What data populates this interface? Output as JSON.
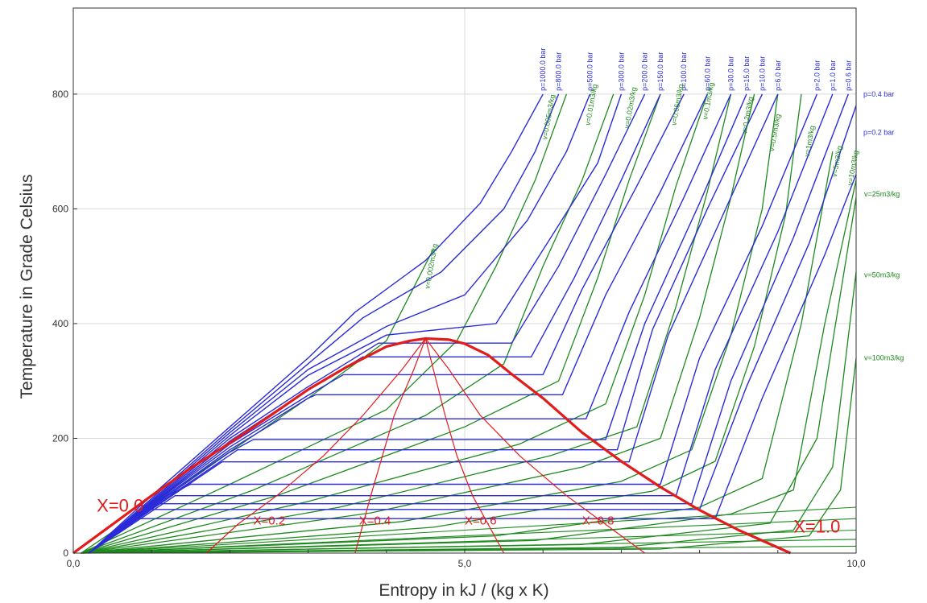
{
  "chart_data": {
    "type": "line",
    "title": "",
    "xlabel": "Entropy in kJ / (kg x K)",
    "ylabel": "Temperature in Grade Celsius",
    "xlim": [
      0,
      10
    ],
    "ylim": [
      0,
      950
    ],
    "x_ticks": [
      {
        "value": 0,
        "label": "0,0"
      },
      {
        "value": 5,
        "label": "5,0"
      },
      {
        "value": 10,
        "label": "10,0"
      }
    ],
    "y_ticks": [
      {
        "value": 0,
        "label": "0"
      },
      {
        "value": 200,
        "label": "200"
      },
      {
        "value": 400,
        "label": "400"
      },
      {
        "value": 600,
        "label": "600"
      },
      {
        "value": 800,
        "label": "800"
      }
    ],
    "grid": true,
    "colors": {
      "isobar": "#2b2bd8",
      "isochore": "#1e8a1e",
      "quality": "#e21b1b",
      "grid": "#d9d9d9"
    },
    "saturation_dome": {
      "x": [
        0.0,
        0.5,
        1.0,
        1.5,
        2.0,
        2.5,
        3.0,
        3.5,
        4.0,
        4.3,
        4.5,
        4.8,
        5.0,
        5.3,
        5.6,
        6.0,
        6.5,
        7.0,
        7.5,
        8.0,
        8.5,
        9.16
      ],
      "y": [
        0,
        50,
        100,
        148,
        192,
        238,
        285,
        325,
        360,
        370,
        374,
        372,
        365,
        345,
        312,
        270,
        210,
        160,
        115,
        75,
        40,
        0
      ]
    },
    "quality_lines": [
      {
        "label": "X=0.2",
        "x": [
          1.7,
          2.1,
          2.6,
          3.2,
          3.7,
          4.2,
          4.5
        ],
        "y": [
          0,
          50,
          100,
          170,
          240,
          320,
          374
        ]
      },
      {
        "label": "X=0.4",
        "x": [
          3.6,
          3.7,
          3.8,
          3.95,
          4.1,
          4.35,
          4.5
        ],
        "y": [
          0,
          50,
          100,
          170,
          240,
          320,
          374
        ]
      },
      {
        "label": "X=0.6",
        "x": [
          5.5,
          5.3,
          5.1,
          4.9,
          4.75,
          4.6,
          4.5
        ],
        "y": [
          0,
          50,
          100,
          170,
          240,
          320,
          374
        ]
      },
      {
        "label": "X=0.8",
        "x": [
          7.3,
          6.8,
          6.3,
          5.7,
          5.2,
          4.8,
          4.5
        ],
        "y": [
          0,
          50,
          100,
          170,
          240,
          320,
          374
        ]
      }
    ],
    "series_isobars": [
      {
        "name": "p=1000.0 bar",
        "x": [
          0.2,
          1.0,
          2.0,
          3.0,
          3.6,
          4.5,
          5.2,
          5.6,
          6.0
        ],
        "y": [
          0,
          100,
          220,
          340,
          420,
          510,
          610,
          700,
          800
        ]
      },
      {
        "name": "p=800.0 bar",
        "x": [
          0.2,
          1.0,
          2.0,
          3.0,
          3.7,
          4.7,
          5.5,
          5.9,
          6.2
        ],
        "y": [
          0,
          95,
          215,
          330,
          410,
          490,
          600,
          700,
          800
        ]
      },
      {
        "name": "p=500.0 bar",
        "x": [
          0.2,
          1.0,
          2.0,
          3.0,
          4.0,
          5.0,
          5.8,
          6.3,
          6.6
        ],
        "y": [
          0,
          92,
          210,
          320,
          395,
          450,
          580,
          700,
          800
        ]
      },
      {
        "name": "p=300.0 bar",
        "x": [
          0.2,
          1.0,
          2.0,
          3.0,
          4.0,
          5.4,
          6.1,
          6.7,
          7.0
        ],
        "y": [
          0,
          90,
          205,
          310,
          380,
          400,
          550,
          680,
          800
        ]
      },
      {
        "name": "p=200.0 bar",
        "x": [
          0.2,
          1.0,
          2.0,
          3.0,
          3.9,
          5.6,
          6.2,
          6.8,
          7.3
        ],
        "y": [
          0,
          88,
          200,
          290,
          366,
          366,
          500,
          660,
          800
        ]
      },
      {
        "name": "p=150.0 bar",
        "x": [
          0.2,
          1.0,
          2.0,
          3.0,
          3.7,
          5.85,
          6.4,
          7.0,
          7.5
        ],
        "y": [
          0,
          86,
          195,
          285,
          342,
          342,
          480,
          650,
          800
        ]
      },
      {
        "name": "p=100.0 bar",
        "x": [
          0.2,
          1.0,
          2.0,
          3.0,
          3.45,
          6.0,
          6.5,
          7.2,
          7.8
        ],
        "y": [
          0,
          85,
          190,
          275,
          311,
          311,
          460,
          640,
          800
        ]
      },
      {
        "name": "p=60.0 bar",
        "x": [
          0.2,
          1.0,
          2.0,
          3.0,
          3.1,
          6.25,
          6.8,
          7.5,
          8.1
        ],
        "y": [
          0,
          84,
          185,
          270,
          276,
          276,
          450,
          630,
          800
        ]
      },
      {
        "name": "p=30.0 bar",
        "x": [
          0.2,
          1.0,
          2.0,
          2.65,
          6.55,
          7.1,
          7.8,
          8.4
        ],
        "y": [
          0,
          82,
          180,
          234,
          234,
          420,
          620,
          800
        ]
      },
      {
        "name": "p=15.0 bar",
        "x": [
          0.2,
          1.0,
          2.0,
          2.3,
          6.8,
          7.3,
          8.0,
          8.6
        ],
        "y": [
          0,
          80,
          176,
          198,
          198,
          400,
          610,
          800
        ]
      },
      {
        "name": "p=10.0 bar",
        "x": [
          0.2,
          1.0,
          2.1,
          6.95,
          7.4,
          8.1,
          8.8
        ],
        "y": [
          0,
          78,
          180,
          180,
          390,
          600,
          800
        ]
      },
      {
        "name": "p=6.0 bar",
        "x": [
          0.2,
          1.0,
          1.9,
          7.1,
          7.6,
          8.3,
          9.0
        ],
        "y": [
          0,
          76,
          159,
          159,
          380,
          590,
          800
        ]
      },
      {
        "name": "p=2.0 bar",
        "x": [
          0.2,
          1.2,
          1.5,
          7.5,
          8.0,
          8.8,
          9.5
        ],
        "y": [
          0,
          100,
          120,
          120,
          340,
          570,
          800
        ]
      },
      {
        "name": "p=1.0 bar",
        "x": [
          0.2,
          1.3,
          7.7,
          8.2,
          9.0,
          9.7
        ],
        "y": [
          0,
          100,
          100,
          320,
          560,
          800
        ]
      },
      {
        "name": "p=0.6 bar",
        "x": [
          0.2,
          1.1,
          7.9,
          8.4,
          9.2,
          9.9
        ],
        "y": [
          0,
          86,
          86,
          300,
          550,
          800
        ]
      },
      {
        "name": "p=0.4 bar",
        "x": [
          0.2,
          1.0,
          8.0,
          8.6,
          9.4,
          10.0
        ],
        "y": [
          0,
          76,
          76,
          290,
          540,
          780
        ]
      },
      {
        "name": "p=0.2 bar",
        "x": [
          0.2,
          0.8,
          8.2,
          8.8,
          9.6,
          10.0
        ],
        "y": [
          0,
          60,
          60,
          270,
          520,
          660
        ]
      }
    ],
    "series_isochores": [
      {
        "name": "v=0.002m3/kg",
        "x": [
          0.1,
          1.5,
          3.0,
          4.0,
          4.3,
          4.6
        ],
        "y": [
          0,
          130,
          270,
          370,
          450,
          530
        ]
      },
      {
        "name": "v=0.005m3/kg",
        "x": [
          0.1,
          2.0,
          4.0,
          4.9,
          5.4,
          5.9,
          6.3
        ],
        "y": [
          0,
          120,
          250,
          370,
          500,
          650,
          800
        ]
      },
      {
        "name": "v=0.01m3/kg",
        "x": [
          0.1,
          2.3,
          4.5,
          5.5,
          6.0,
          6.5,
          6.9
        ],
        "y": [
          0,
          110,
          240,
          330,
          500,
          650,
          800
        ]
      },
      {
        "name": "v=0.02m3/kg",
        "x": [
          0.1,
          2.6,
          5.0,
          6.2,
          6.7,
          7.1,
          7.5
        ],
        "y": [
          0,
          100,
          220,
          300,
          480,
          650,
          800
        ]
      },
      {
        "name": "v=0.05m3/kg",
        "x": [
          0.1,
          3.0,
          5.7,
          6.8,
          7.3,
          7.7,
          8.1
        ],
        "y": [
          0,
          90,
          190,
          260,
          450,
          640,
          800
        ]
      },
      {
        "name": "v=0.1m3/kg",
        "x": [
          0.1,
          3.4,
          6.1,
          7.2,
          7.7,
          8.1,
          8.4
        ],
        "y": [
          0,
          80,
          170,
          220,
          430,
          630,
          800
        ]
      },
      {
        "name": "v=0.2m3/kg",
        "x": [
          0.1,
          3.8,
          6.5,
          7.5,
          8.0,
          8.4,
          8.7
        ],
        "y": [
          0,
          70,
          150,
          200,
          410,
          620,
          800
        ]
      },
      {
        "name": "v=0.5m3/kg",
        "x": [
          0.1,
          4.2,
          7.0,
          7.9,
          8.4,
          8.8,
          9.0
        ],
        "y": [
          0,
          55,
          125,
          180,
          380,
          600,
          800
        ]
      },
      {
        "name": "v=1m3/kg",
        "x": [
          0.1,
          4.6,
          7.4,
          8.2,
          8.7,
          9.1,
          9.3
        ],
        "y": [
          0,
          45,
          108,
          160,
          360,
          590,
          800
        ]
      },
      {
        "name": "v=5m3/kg",
        "x": [
          0.1,
          5.4,
          8.0,
          8.8,
          9.3,
          9.7
        ],
        "y": [
          0,
          30,
          80,
          130,
          400,
          700
        ]
      },
      {
        "name": "v=10m3/kg",
        "x": [
          0.1,
          5.9,
          8.4,
          9.2,
          9.6,
          10.0
        ],
        "y": [
          0,
          22,
          68,
          110,
          400,
          650
        ]
      },
      {
        "name": "v=25m3/kg",
        "x": [
          0.1,
          6.5,
          8.9,
          9.5,
          10.0
        ],
        "y": [
          0,
          15,
          52,
          200,
          620
        ]
      },
      {
        "name": "v=50m3/kg",
        "x": [
          0.1,
          7.0,
          9.2,
          9.7,
          10.0
        ],
        "y": [
          0,
          10,
          40,
          150,
          490
        ]
      },
      {
        "name": "v=100m3/kg",
        "x": [
          0.1,
          7.5,
          9.4,
          9.8,
          10.0
        ],
        "y": [
          0,
          7,
          30,
          110,
          340
        ]
      }
    ],
    "fan_lines": [
      {
        "x": [
          0.1,
          5.0,
          10.0
        ],
        "y": [
          0,
          6,
          12
        ]
      },
      {
        "x": [
          0.1,
          5.0,
          10.0
        ],
        "y": [
          0,
          12,
          24
        ]
      },
      {
        "x": [
          0.1,
          5.0,
          10.0
        ],
        "y": [
          0,
          20,
          40
        ]
      },
      {
        "x": [
          0.1,
          5.0,
          10.0
        ],
        "y": [
          0,
          30,
          60
        ]
      },
      {
        "x": [
          0.1,
          5.0,
          10.0
        ],
        "y": [
          0,
          40,
          80
        ]
      }
    ],
    "annotations": {
      "pressure_top": [
        "p=1000.0 bar",
        "p=800.0 bar",
        "p=500.0 bar",
        "p=300.0 bar",
        "p=200.0 bar",
        "p=150.0 bar",
        "p=100.0 bar",
        "p=60.0 bar",
        "p=30.0 bar",
        "p=15.0 bar",
        "p=10.0 bar",
        "p=6.0 bar",
        "p=2.0 bar",
        "p=1.0 bar",
        "p=0.6 bar"
      ],
      "pressure_right": [
        {
          "text": "p=0.4 bar",
          "t": 800
        },
        {
          "text": "p=0.2 bar",
          "t": 667
        }
      ],
      "volume_inner": [
        {
          "text": "v=0.002m3/kg",
          "s": 4.55,
          "t": 460
        },
        {
          "text": "v=0.005m3/kg",
          "s": 6.05,
          "t": 720
        },
        {
          "text": "v=0.01m3/kg",
          "s": 6.6,
          "t": 745
        },
        {
          "text": "v=0.02m3/kg",
          "s": 7.1,
          "t": 740
        },
        {
          "text": "v=0.05m3/kg",
          "s": 7.7,
          "t": 745
        },
        {
          "text": "v=0.1m3/kg",
          "s": 8.1,
          "t": 755
        },
        {
          "text": "v=0.2m3/kg",
          "s": 8.6,
          "t": 730
        },
        {
          "text": "v=0.5m3/kg",
          "s": 8.95,
          "t": 700
        },
        {
          "text": "v=1m3/kg",
          "s": 9.4,
          "t": 690
        },
        {
          "text": "v=5m3/kg",
          "s": 9.75,
          "t": 655
        },
        {
          "text": "v=10m3/kg",
          "s": 9.95,
          "t": 640
        }
      ],
      "volume_right": [
        {
          "text": "v=25m3/kg",
          "t": 626
        },
        {
          "text": "v=50m3/kg",
          "t": 485
        },
        {
          "text": "v=100m3/kg",
          "t": 340
        }
      ],
      "quality": [
        {
          "text": "X=0.0",
          "s": 0.3,
          "t": 72,
          "size": 22
        },
        {
          "text": "X=0.2",
          "s": 2.3,
          "t": 50,
          "size": 15
        },
        {
          "text": "X=0.4",
          "s": 3.65,
          "t": 50,
          "size": 15
        },
        {
          "text": "X=0.6",
          "s": 5.0,
          "t": 50,
          "size": 15
        },
        {
          "text": "X=0.8",
          "s": 6.5,
          "t": 50,
          "size": 15
        },
        {
          "text": "X=1.0",
          "s": 9.2,
          "t": 36,
          "size": 22
        }
      ]
    }
  }
}
